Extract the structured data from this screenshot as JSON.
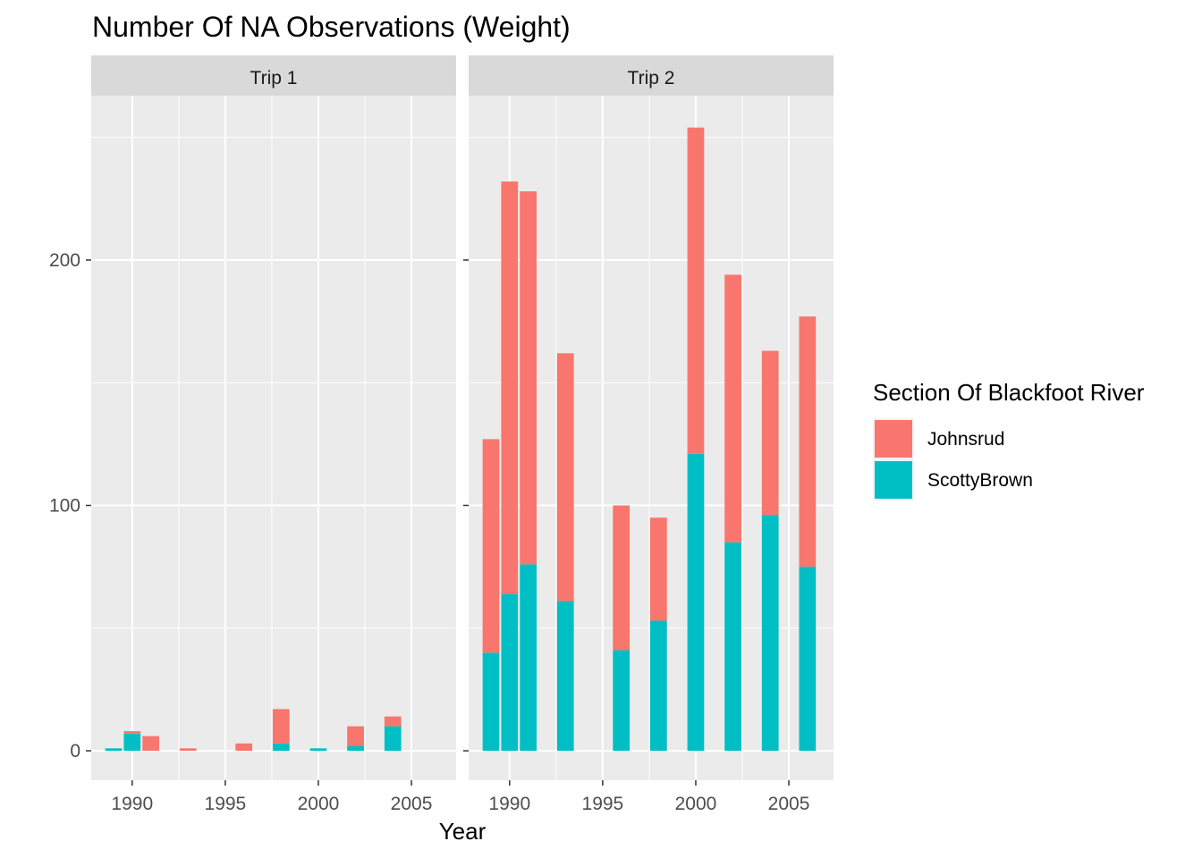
{
  "chart_data": {
    "type": "bar",
    "stacked": true,
    "title": "Number Of NA Observations (Weight)",
    "xlabel": "Year",
    "ylabel": "",
    "x_ticks": [
      1990,
      1995,
      2000,
      2005
    ],
    "y_ticks": [
      0,
      100,
      200
    ],
    "xlim": [
      1987.8,
      2007.4
    ],
    "ylim": [
      -12,
      267
    ],
    "legend": {
      "title": "Section Of Blackfoot River",
      "placement": "right",
      "entries": [
        {
          "name": "Johnsrud",
          "color": "#F8766D"
        },
        {
          "name": "ScottyBrown",
          "color": "#00BFC4"
        }
      ]
    },
    "facets": [
      {
        "label": "Trip 1",
        "x": [
          1989,
          1990,
          1991,
          1993,
          1996,
          1998,
          2000,
          2002,
          2004
        ],
        "series": [
          {
            "name": "ScottyBrown",
            "values": [
              1,
              7,
              0,
              0,
              0,
              3,
              1,
              2,
              10
            ]
          },
          {
            "name": "Johnsrud",
            "values": [
              0,
              1,
              6,
              1,
              3,
              14,
              0,
              8,
              4
            ]
          }
        ]
      },
      {
        "label": "Trip 2",
        "x": [
          1989,
          1990,
          1991,
          1993,
          1996,
          1998,
          2000,
          2002,
          2004,
          2006
        ],
        "series": [
          {
            "name": "ScottyBrown",
            "values": [
              40,
              64,
              76,
              61,
              41,
              53,
              121,
              85,
              96,
              75
            ]
          },
          {
            "name": "Johnsrud",
            "values": [
              87,
              168,
              152,
              101,
              59,
              42,
              133,
              109,
              67,
              102
            ]
          }
        ]
      }
    ]
  }
}
